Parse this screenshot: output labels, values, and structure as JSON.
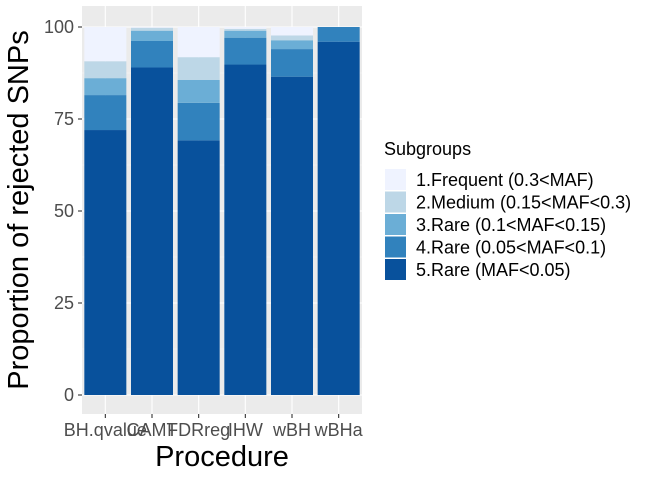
{
  "chart_data": {
    "type": "bar",
    "stacked": true,
    "xlabel": "Procedure",
    "ylabel": "Proportion of rejected SNPs",
    "categories": [
      "BH.qvalue",
      "CAMT",
      "FDRreg",
      "IHW",
      "wBH",
      "wBHa"
    ],
    "ylim": [
      0,
      100
    ],
    "yticks": [
      0,
      25,
      50,
      75,
      100
    ],
    "grid": true,
    "legend": {
      "title": "Subgroups",
      "position": "right"
    },
    "series": [
      {
        "name": "5.Rare (MAF<0.05)",
        "color": "#08519c",
        "values": [
          72,
          89,
          69.2,
          89.8,
          86.5,
          96
        ]
      },
      {
        "name": "4.Rare (0.05<MAF<0.1)",
        "color": "#3182bd",
        "values": [
          9.5,
          7.2,
          10.2,
          7.3,
          7.5,
          4
        ]
      },
      {
        "name": "3.Rare (0.1<MAF<0.15)",
        "color": "#6baed6",
        "values": [
          4.6,
          2.8,
          6.2,
          1.9,
          2.4,
          0
        ]
      },
      {
        "name": "2.Medium (0.15<MAF<0.3)",
        "color": "#bdd7e7",
        "values": [
          4.6,
          0.8,
          6.2,
          0.5,
          1.3,
          0
        ]
      },
      {
        "name": "1.Frequent (0.3<MAF)",
        "color": "#eff3ff",
        "values": [
          9.3,
          0.2,
          8.2,
          0.5,
          2.3,
          0
        ]
      }
    ]
  }
}
